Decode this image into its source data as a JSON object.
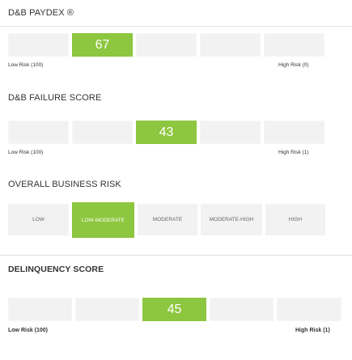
{
  "paydex": {
    "title": "D&B PAYDEX ®",
    "score": "67",
    "low_label": "Low Risk (100)",
    "high_label": "High Risk (0)"
  },
  "failure": {
    "title": "D&B FAILURE SCORE",
    "score": "43",
    "low_label": "Low Risk (100)",
    "high_label": "High Risk (1)"
  },
  "overall": {
    "title": "OVERALL BUSINESS RISK",
    "levels": [
      "LOW",
      "LOW-MODERATE",
      "MODERATE",
      "MODERATE-HIGH",
      "HIGH"
    ],
    "active_level": "LOW-MODERATE"
  },
  "delinquency": {
    "title": "DELINQUENCY SCORE",
    "score": "45",
    "low_label": "Low Risk (100)",
    "high_label": "High Risk (1)"
  },
  "colors": {
    "active": "#8dc63f",
    "inactive": "#f2f2f2"
  }
}
